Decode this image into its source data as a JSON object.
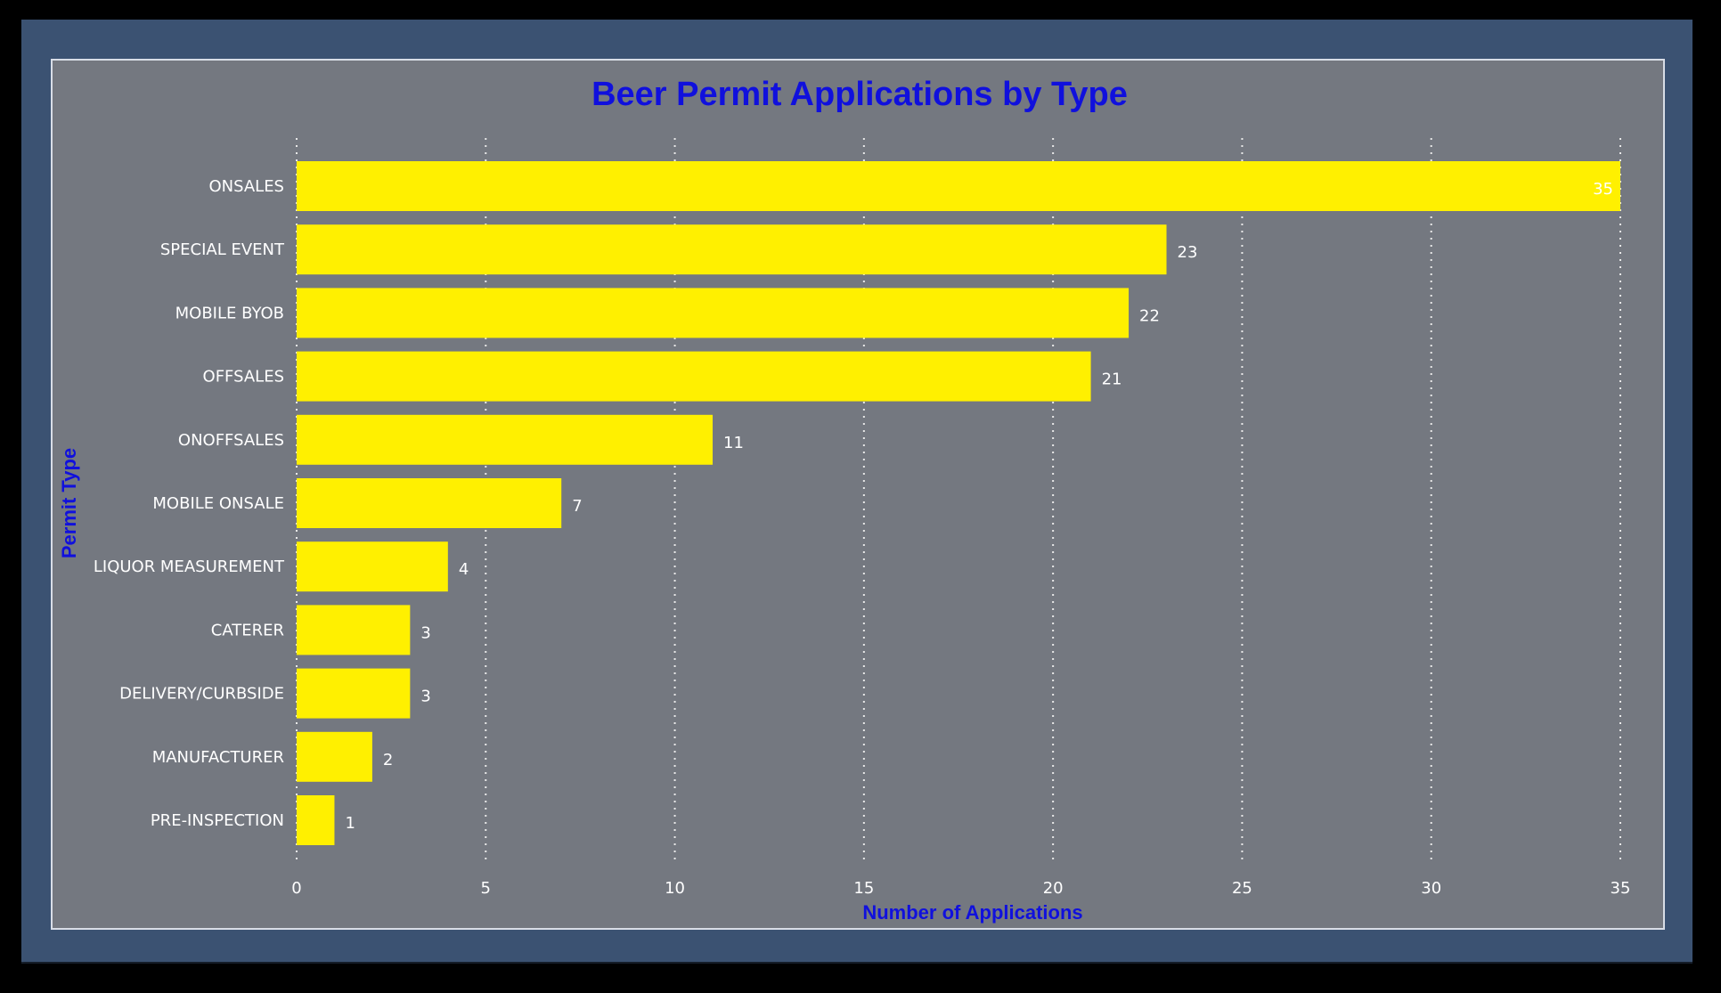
{
  "colors": {
    "bar": "#fff000",
    "title": "#1010dd",
    "panel": "#747880",
    "slide": "#3b5272"
  },
  "chart_data": {
    "type": "bar",
    "orientation": "horizontal",
    "title": "Beer Permit Applications by Type",
    "xlabel": "Number of Applications",
    "ylabel": "Permit Type",
    "xlim": [
      0,
      35
    ],
    "xticks": [
      0,
      5,
      10,
      15,
      20,
      25,
      30,
      35
    ],
    "grid": "vertical dotted",
    "legend": "none",
    "categories": [
      "ONSALES",
      "SPECIAL EVENT",
      "MOBILE BYOB",
      "OFFSALES",
      "ONOFFSALES",
      "MOBILE ONSALE",
      "LIQUOR MEASUREMENT",
      "CATERER",
      "DELIVERY/CURBSIDE",
      "MANUFACTURER",
      "PRE-INSPECTION"
    ],
    "values": [
      35,
      23,
      22,
      21,
      11,
      7,
      4,
      3,
      3,
      2,
      1
    ]
  }
}
